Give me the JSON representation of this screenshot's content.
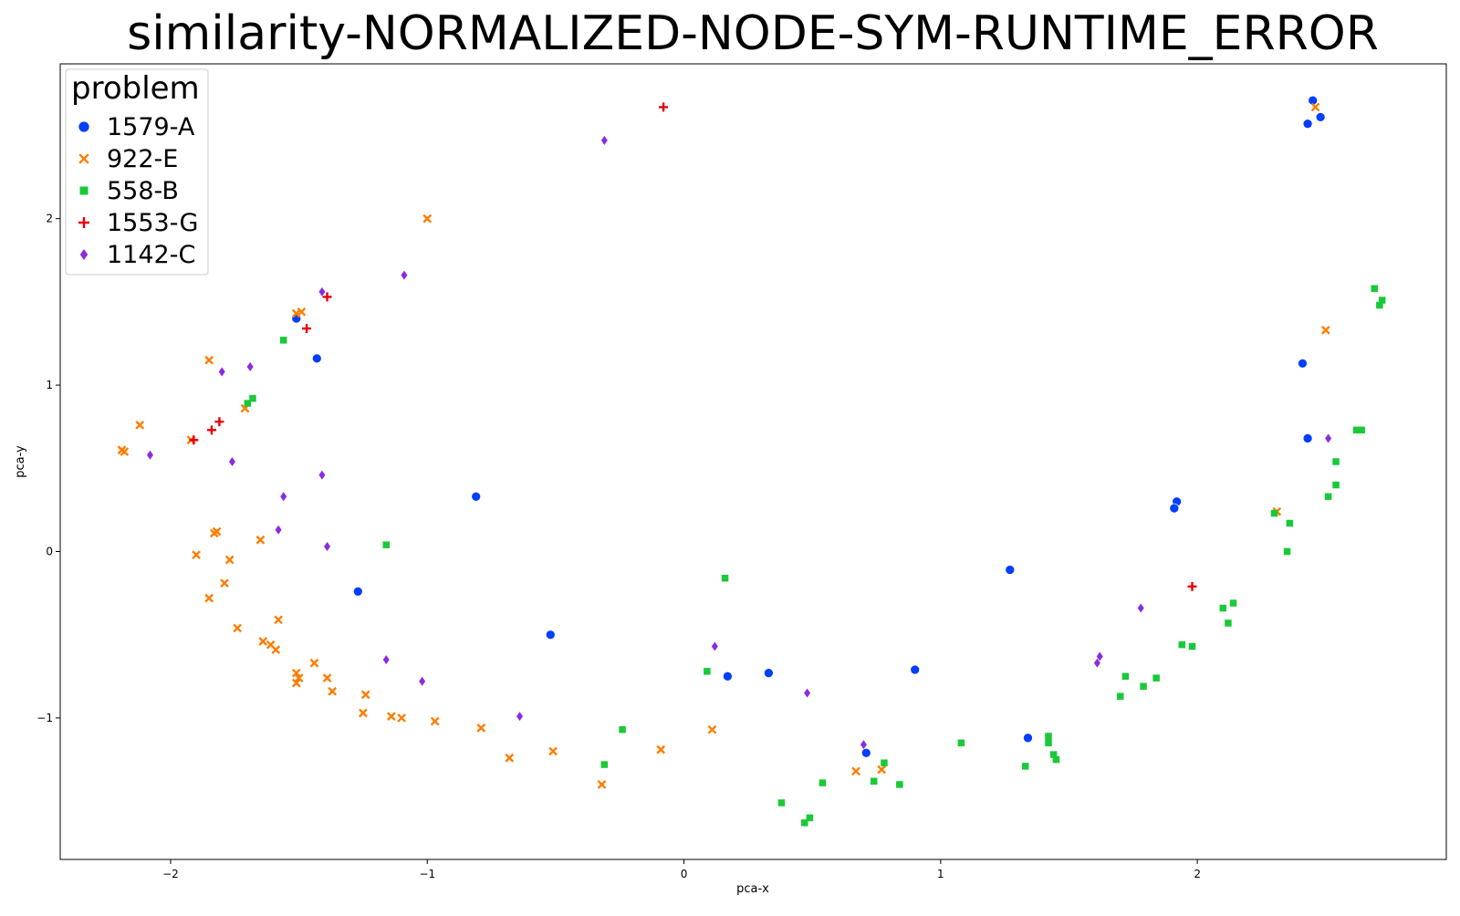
{
  "chart_data": {
    "type": "scatter",
    "title": "similarity-NORMALIZED-NODE-SYM-RUNTIME_ERROR",
    "x_label": "pca-x",
    "y_label": "pca-y",
    "legend_title": "problem",
    "legend_position": "upper left",
    "xlim": [
      -2.43,
      2.97
    ],
    "ylim": [
      -1.85,
      2.93
    ],
    "xticks": [
      {
        "value": -2,
        "label": "−2"
      },
      {
        "value": -1,
        "label": "−1"
      },
      0,
      1,
      2
    ],
    "yticks": [
      {
        "value": -1,
        "label": "−1"
      },
      0,
      1,
      2
    ],
    "series": [
      {
        "name": "1579-A",
        "color": "#023eff",
        "marker": "circle",
        "x": [
          2.45,
          2.48,
          2.43,
          -1.51,
          -1.43,
          2.41,
          2.43,
          -0.81,
          1.92,
          1.91,
          1.27,
          -1.27,
          -0.52,
          0.17,
          0.33,
          0.9,
          1.34,
          0.71
        ],
        "y": [
          2.71,
          2.61,
          2.57,
          1.4,
          1.16,
          1.13,
          0.68,
          0.33,
          0.3,
          0.26,
          -0.11,
          -0.24,
          -0.5,
          -0.75,
          -0.73,
          -0.71,
          -1.12,
          -1.21
        ]
      },
      {
        "name": "922-E",
        "color": "#ff7c00",
        "marker": "x",
        "x": [
          2.46,
          -1.0,
          -1.49,
          -1.51,
          2.5,
          -1.85,
          -2.12,
          -2.19,
          -2.18,
          -1.71,
          -1.92,
          2.31,
          -1.82,
          -1.83,
          -1.65,
          -1.9,
          -1.77,
          -1.79,
          -1.85,
          -1.58,
          -1.74,
          -1.64,
          -1.61,
          -1.59,
          -1.44,
          -1.51,
          -1.5,
          -1.51,
          -1.39,
          -1.37,
          -1.24,
          -1.25,
          -1.14,
          -1.1,
          -0.97,
          -0.79,
          -0.68,
          -0.51,
          -0.32,
          -0.09,
          0.11,
          0.67,
          0.77
        ],
        "y": [
          2.67,
          2.0,
          1.44,
          1.43,
          1.33,
          1.15,
          0.76,
          0.61,
          0.6,
          0.86,
          0.67,
          0.24,
          0.12,
          0.11,
          0.07,
          -0.02,
          -0.05,
          -0.19,
          -0.28,
          -0.41,
          -0.46,
          -0.54,
          -0.56,
          -0.59,
          -0.67,
          -0.73,
          -0.76,
          -0.79,
          -0.76,
          -0.84,
          -0.86,
          -0.97,
          -0.99,
          -1.0,
          -1.02,
          -1.06,
          -1.24,
          -1.2,
          -1.4,
          -1.19,
          -1.07,
          -1.32,
          -1.31
        ]
      },
      {
        "name": "558-B",
        "color": "#1ac938",
        "marker": "square",
        "x": [
          2.69,
          2.72,
          2.71,
          -1.56,
          -1.68,
          -1.7,
          2.64,
          2.62,
          2.54,
          2.54,
          2.51,
          2.3,
          2.36,
          2.35,
          -1.16,
          0.16,
          2.14,
          2.1,
          2.12,
          1.94,
          1.98,
          0.09,
          1.72,
          1.84,
          1.79,
          1.7,
          -0.24,
          1.42,
          1.42,
          1.08,
          1.44,
          1.45,
          -0.31,
          0.78,
          1.33,
          0.74,
          0.84,
          0.54,
          0.38,
          0.49,
          0.47
        ],
        "y": [
          1.58,
          1.51,
          1.48,
          1.27,
          0.92,
          0.89,
          0.73,
          0.73,
          0.54,
          0.4,
          0.33,
          0.23,
          0.17,
          0.0,
          0.04,
          -0.16,
          -0.31,
          -0.34,
          -0.43,
          -0.56,
          -0.57,
          -0.72,
          -0.75,
          -0.76,
          -0.81,
          -0.87,
          -1.07,
          -1.11,
          -1.15,
          -1.15,
          -1.22,
          -1.25,
          -1.28,
          -1.27,
          -1.29,
          -1.38,
          -1.4,
          -1.39,
          -1.51,
          -1.6,
          -1.63
        ]
      },
      {
        "name": "1553-G",
        "color": "#e8000b",
        "marker": "plus",
        "x": [
          -0.08,
          -1.39,
          -1.47,
          -1.81,
          -1.84,
          -1.91,
          1.98
        ],
        "y": [
          2.67,
          1.53,
          1.34,
          0.78,
          0.73,
          0.67,
          -0.21
        ]
      },
      {
        "name": "1142-C",
        "color": "#8b2be2",
        "marker": "diamond",
        "x": [
          -0.31,
          -1.09,
          -1.41,
          -1.69,
          -1.8,
          -2.08,
          -1.76,
          2.51,
          -1.41,
          -1.56,
          -1.58,
          -1.39,
          1.78,
          1.62,
          1.61,
          0.12,
          -1.16,
          -1.02,
          0.48,
          -0.64,
          0.7
        ],
        "y": [
          2.47,
          1.66,
          1.56,
          1.11,
          1.08,
          0.58,
          0.54,
          0.68,
          0.46,
          0.33,
          0.13,
          0.03,
          -0.34,
          -0.63,
          -0.67,
          -0.57,
          -0.65,
          -0.78,
          -0.85,
          -0.99,
          -1.16
        ]
      }
    ]
  }
}
